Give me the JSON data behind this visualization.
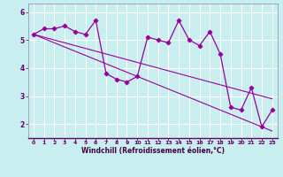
{
  "xlabel": "Windchill (Refroidissement éolien,°C)",
  "x_values": [
    0,
    1,
    2,
    3,
    4,
    5,
    6,
    7,
    8,
    9,
    10,
    11,
    12,
    13,
    14,
    15,
    16,
    17,
    18,
    19,
    20,
    21,
    22,
    23
  ],
  "y_main": [
    5.2,
    5.4,
    5.4,
    5.5,
    5.3,
    5.2,
    5.7,
    3.8,
    3.6,
    3.5,
    3.7,
    5.1,
    5.0,
    4.9,
    5.7,
    5.0,
    4.8,
    5.3,
    4.5,
    2.6,
    2.5,
    3.3,
    1.9,
    2.5
  ],
  "y_trend1": [
    5.2,
    5.05,
    4.9,
    4.75,
    4.6,
    4.45,
    4.3,
    4.15,
    4.0,
    3.85,
    3.7,
    3.55,
    3.4,
    3.25,
    3.1,
    2.95,
    2.8,
    2.65,
    2.5,
    2.35,
    2.2,
    2.05,
    1.9,
    1.75
  ],
  "y_trend2": [
    5.2,
    5.1,
    5.0,
    4.9,
    4.8,
    4.7,
    4.6,
    4.5,
    4.4,
    4.3,
    4.2,
    4.1,
    4.0,
    3.9,
    3.8,
    3.7,
    3.6,
    3.5,
    3.4,
    3.3,
    3.2,
    3.1,
    3.0,
    2.9
  ],
  "line_color": "#990099",
  "bg_color": "#c8eef0",
  "grid_color": "#ffffff",
  "ylim": [
    1.5,
    6.3
  ],
  "yticks": [
    2,
    3,
    4,
    5,
    6
  ],
  "xlim": [
    -0.5,
    23.5
  ]
}
